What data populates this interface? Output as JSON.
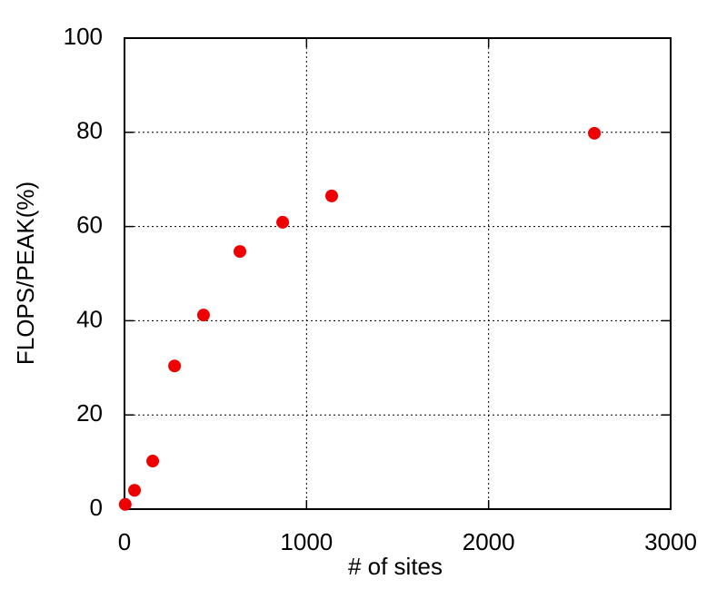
{
  "chart_data": {
    "type": "scatter",
    "x_label": "# of sites",
    "y_label": "FLOPS/PEAK(%)",
    "x": [
      4,
      55,
      155,
      275,
      434,
      634,
      869,
      1138,
      2581
    ],
    "series": [
      {
        "color": "#ee0000",
        "values": [
          1,
          4,
          10.2,
          30.4,
          41.2,
          54.7,
          60.9,
          66.5,
          79.8
        ]
      }
    ],
    "xlim": [
      0,
      3000
    ],
    "ylim": [
      0,
      100
    ],
    "xticks": [
      0,
      1000,
      2000,
      3000
    ],
    "yticks": [
      0,
      20,
      40,
      60,
      80,
      100
    ],
    "grid": true
  }
}
